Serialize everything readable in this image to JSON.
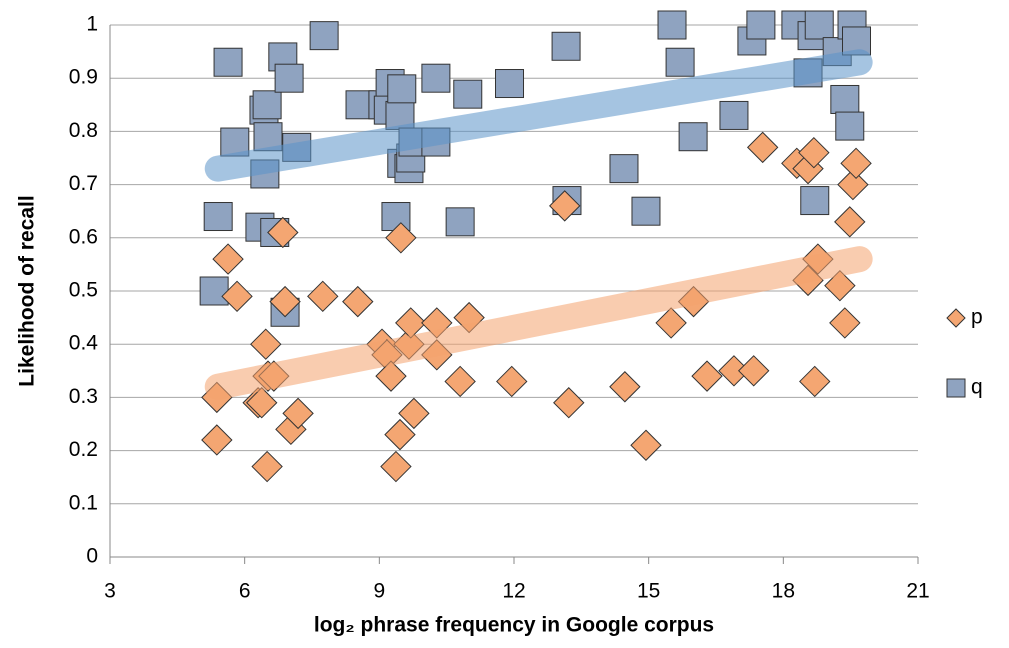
{
  "chart_data": {
    "type": "scatter",
    "x_label": "log₂ phrase frequency in Google corpus",
    "y_label": "Likelihood of recall",
    "xlim": [
      3,
      21
    ],
    "xticks": [
      3,
      6,
      9,
      12,
      15,
      18,
      21
    ],
    "ylim": [
      0,
      1
    ],
    "yticks": [
      0,
      0.1,
      0.2,
      0.3,
      0.4,
      0.5,
      0.6,
      0.7,
      0.8,
      0.9,
      1
    ],
    "grid": true,
    "legend": "right",
    "series": [
      {
        "name": "p",
        "marker": "diamond",
        "color": "#f4a672",
        "x": [
          5.38,
          5.38,
          5.63,
          5.83,
          6.3,
          6.38,
          6.47,
          6.5,
          6.52,
          6.65,
          6.85,
          6.9,
          7.03,
          7.19,
          7.74,
          8.52,
          9.06,
          9.17,
          9.26,
          9.37,
          9.48,
          9.46,
          9.66,
          9.7,
          9.77,
          10.28,
          10.28,
          10.8,
          11.0,
          11.95,
          13.13,
          13.22,
          14.47,
          14.94,
          15.5,
          16.0,
          16.3,
          16.9,
          17.34,
          17.54,
          18.3,
          18.55,
          18.68,
          18.55,
          18.77,
          18.7,
          19.26,
          19.37,
          19.48,
          19.55,
          19.62
        ],
        "values": [
          0.3,
          0.22,
          0.56,
          0.49,
          0.29,
          0.29,
          0.4,
          0.17,
          0.34,
          0.34,
          0.61,
          0.48,
          0.24,
          0.27,
          0.49,
          0.48,
          0.4,
          0.38,
          0.34,
          0.17,
          0.6,
          0.23,
          0.4,
          0.44,
          0.27,
          0.44,
          0.38,
          0.33,
          0.45,
          0.33,
          0.66,
          0.29,
          0.32,
          0.21,
          0.44,
          0.48,
          0.34,
          0.35,
          0.35,
          0.77,
          0.74,
          0.73,
          0.76,
          0.52,
          0.56,
          0.33,
          0.51,
          0.44,
          0.63,
          0.7,
          0.74
        ]
      },
      {
        "name": "q",
        "marker": "square",
        "color": "#8fa3c0",
        "x": [
          5.63,
          5.78,
          5.41,
          5.32,
          6.43,
          6.5,
          6.52,
          6.45,
          6.34,
          6.67,
          6.85,
          6.99,
          6.9,
          7.16,
          7.77,
          8.57,
          9.08,
          9.24,
          9.2,
          9.46,
          9.5,
          9.37,
          9.5,
          9.66,
          9.7,
          9.75,
          10.26,
          10.26,
          10.97,
          10.8,
          11.9,
          13.16,
          13.18,
          14.45,
          14.94,
          15.52,
          15.7,
          15.99,
          16.9,
          17.3,
          17.5,
          18.28,
          18.55,
          18.64,
          18.8,
          18.7,
          19.2,
          19.53,
          19.37,
          19.48,
          19.63
        ],
        "values": [
          0.93,
          0.78,
          0.64,
          0.5,
          0.84,
          0.85,
          0.79,
          0.72,
          0.62,
          0.61,
          0.94,
          0.9,
          0.46,
          0.77,
          0.98,
          0.85,
          0.85,
          0.89,
          0.84,
          0.83,
          0.88,
          0.64,
          0.74,
          0.73,
          0.75,
          0.78,
          0.9,
          0.78,
          0.87,
          0.63,
          0.89,
          0.96,
          0.67,
          0.73,
          0.65,
          1.0,
          0.93,
          0.79,
          0.83,
          0.97,
          1.0,
          1.0,
          0.91,
          0.98,
          1.0,
          0.67,
          0.95,
          1.0,
          0.86,
          0.81,
          0.97
        ]
      }
    ],
    "trendlines": [
      {
        "color": "#5b93c9",
        "x": [
          5.4,
          19.7
        ],
        "y": [
          0.73,
          0.93
        ]
      },
      {
        "color": "#f4a26e",
        "x": [
          5.4,
          19.7
        ],
        "y": [
          0.32,
          0.56
        ]
      }
    ]
  }
}
